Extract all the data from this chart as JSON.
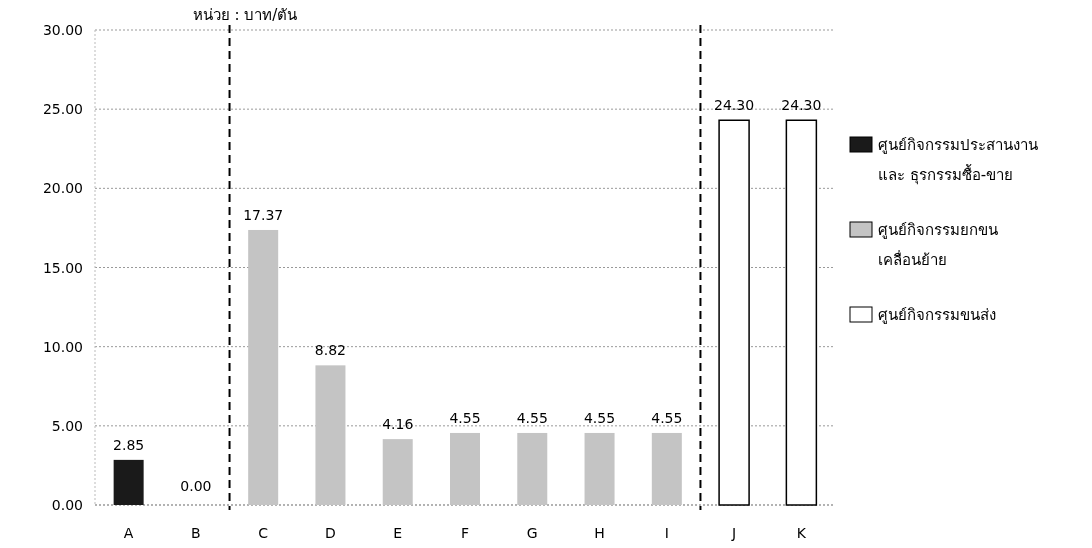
{
  "chart_data": {
    "type": "bar",
    "ylabel": "หน่วย : บาท/ตัน",
    "categories": [
      "A",
      "B",
      "C",
      "D",
      "E",
      "F",
      "G",
      "H",
      "I",
      "J",
      "K"
    ],
    "series": [
      {
        "name": "ศูนย์กิจกรรมประสานงาน และ ธุรกรรมซื้อ-ขาย",
        "color": "#1a1a1a",
        "values": [
          2.85,
          0,
          null,
          null,
          null,
          null,
          null,
          null,
          null,
          null,
          null
        ],
        "value_labels": [
          "2.85",
          "0.00",
          null,
          null,
          null,
          null,
          null,
          null,
          null,
          null,
          null
        ]
      },
      {
        "name": "ศูนย์กิจกรรมยกขน เคลื่อนย้าย",
        "color": "#c4c4c4",
        "values": [
          null,
          null,
          17.37,
          8.82,
          4.16,
          4.55,
          4.55,
          4.55,
          4.55,
          null,
          null
        ],
        "value_labels": [
          null,
          null,
          "17.37",
          "8.82",
          "4.16",
          "4.55",
          "4.55",
          "4.55",
          "4.55",
          null,
          null
        ]
      },
      {
        "name": "ศูนย์กิจกรรมขนส่ง",
        "color": "#ffffff",
        "values": [
          null,
          null,
          null,
          null,
          null,
          null,
          null,
          null,
          null,
          24.3,
          24.3
        ],
        "value_labels": [
          null,
          null,
          null,
          null,
          null,
          null,
          null,
          null,
          null,
          "24.30",
          "24.30"
        ]
      }
    ],
    "ylim": [
      0,
      30
    ],
    "yticks": [
      {
        "value": 0,
        "label": "0.00"
      },
      {
        "value": 5,
        "label": "5.00"
      },
      {
        "value": 10,
        "label": "10.00"
      },
      {
        "value": 15,
        "label": "15.00"
      },
      {
        "value": 20,
        "label": "20.00"
      },
      {
        "value": 25,
        "label": "25.00"
      },
      {
        "value": 30,
        "label": "30.00"
      }
    ],
    "grid": "y",
    "legend": "right"
  }
}
